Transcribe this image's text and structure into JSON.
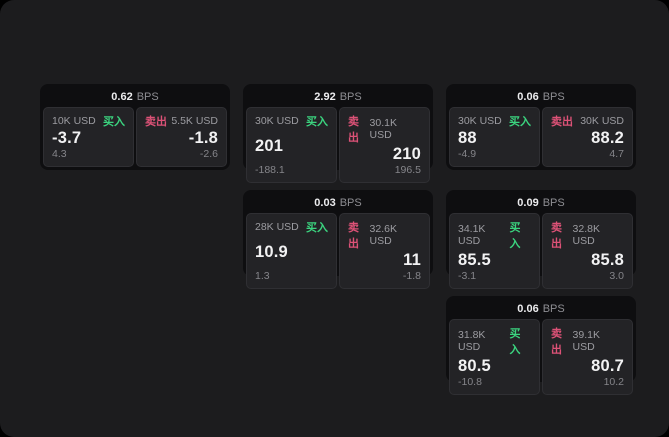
{
  "colors": {
    "app_background": "#1c1c1e",
    "card_background": "#0e0e10",
    "panel_background": "#232326",
    "buy_green": "#3bd47f",
    "sell_red": "#dd5277"
  },
  "cards": [
    {
      "bps_value": "0.62",
      "bps_unit": "BPS",
      "buy": {
        "amount": "10K USD",
        "action": "买入",
        "value": "-3.7",
        "delta": "4.3"
      },
      "sell": {
        "action": "卖出",
        "amount": "5.5K USD",
        "value": "-1.8",
        "delta": "-2.6"
      }
    },
    {
      "bps_value": "2.92",
      "bps_unit": "BPS",
      "buy": {
        "amount": "30K USD",
        "action": "买入",
        "value": "201",
        "delta": "-188.1"
      },
      "sell": {
        "action": "卖出",
        "amount": "30.1K USD",
        "value": "210",
        "delta": "196.5"
      }
    },
    {
      "bps_value": "0.06",
      "bps_unit": "BPS",
      "buy": {
        "amount": "30K USD",
        "action": "买入",
        "value": "88",
        "delta": "-4.9"
      },
      "sell": {
        "action": "卖出",
        "amount": "30K USD",
        "value": "88.2",
        "delta": "4.7"
      }
    },
    {
      "bps_value": "0.03",
      "bps_unit": "BPS",
      "buy": {
        "amount": "28K USD",
        "action": "买入",
        "value": "10.9",
        "delta": "1.3"
      },
      "sell": {
        "action": "卖出",
        "amount": "32.6K USD",
        "value": "11",
        "delta": "-1.8"
      }
    },
    {
      "bps_value": "0.09",
      "bps_unit": "BPS",
      "buy": {
        "amount": "34.1K USD",
        "action": "买入",
        "value": "85.5",
        "delta": "-3.1"
      },
      "sell": {
        "action": "卖出",
        "amount": "32.8K USD",
        "value": "85.8",
        "delta": "3.0"
      }
    },
    {
      "bps_value": "0.06",
      "bps_unit": "BPS",
      "buy": {
        "amount": "31.8K USD",
        "action": "买入",
        "value": "80.5",
        "delta": "-10.8"
      },
      "sell": {
        "action": "卖出",
        "amount": "39.1K USD",
        "value": "80.7",
        "delta": "10.2"
      }
    }
  ]
}
